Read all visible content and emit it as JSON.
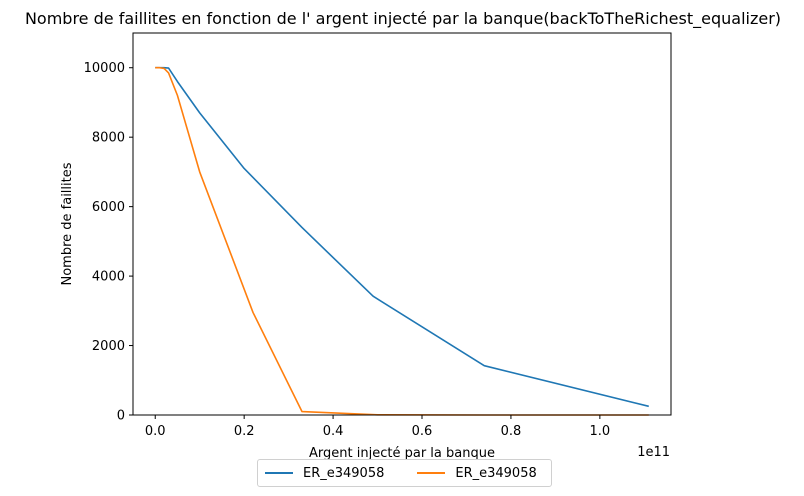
{
  "chart_data": {
    "type": "line",
    "title": "Nombre de faillites en fonction de l' argent injecté par la banque(backToTheRichest_equalizer)",
    "xlabel": "Argent injecté par la banque",
    "ylabel": "Nombre de faillites",
    "x_offset_label": "1e11",
    "xlim": [
      -0.05,
      1.16
    ],
    "ylim": [
      0,
      11000
    ],
    "xticks": [
      0.0,
      0.2,
      0.4,
      0.6,
      0.8,
      1.0
    ],
    "xtick_labels": [
      "0.0",
      "0.2",
      "0.4",
      "0.6",
      "0.8",
      "1.0"
    ],
    "yticks": [
      0,
      2000,
      4000,
      6000,
      8000,
      10000
    ],
    "ytick_labels": [
      "0",
      "2000",
      "4000",
      "6000",
      "8000",
      "10000"
    ],
    "grid": false,
    "legend_position": "below",
    "series": [
      {
        "name": "ER_e349058",
        "color": "#1f77b4",
        "x": [
          0.0,
          0.01,
          0.02,
          0.03,
          0.05,
          0.1,
          0.2,
          0.33,
          0.49,
          0.74,
          1.11
        ],
        "y": [
          10000,
          10000,
          10000,
          9990,
          9600,
          8700,
          7100,
          5400,
          3420,
          1420,
          250
        ]
      },
      {
        "name": "ER_e349058",
        "color": "#ff7f0e",
        "x": [
          0.0,
          0.01,
          0.02,
          0.03,
          0.05,
          0.1,
          0.22,
          0.33,
          0.5,
          0.74,
          1.11
        ],
        "y": [
          10000,
          10000,
          9980,
          9850,
          9200,
          7000,
          2950,
          100,
          5,
          0,
          0
        ]
      }
    ]
  }
}
